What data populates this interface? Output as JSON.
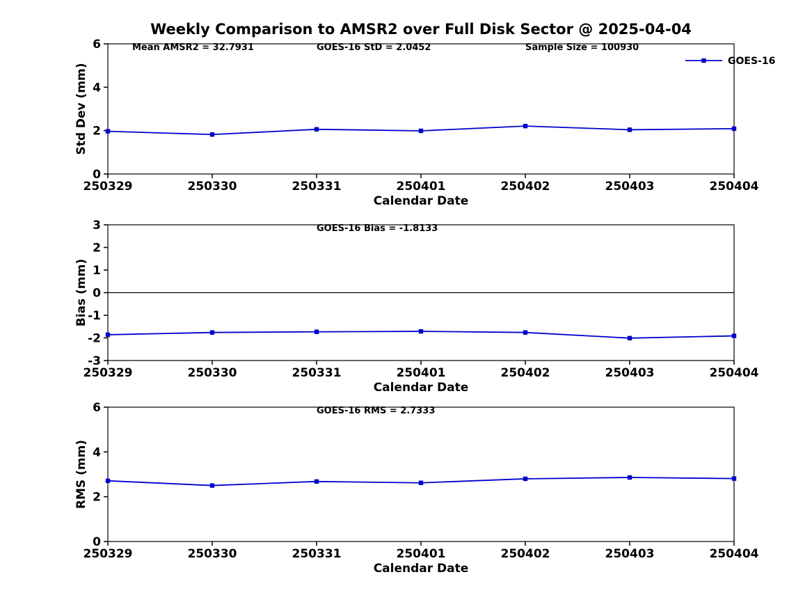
{
  "figure": {
    "background_color": "#ffffff",
    "accent_color": "#0000cc"
  },
  "chart_data": [
    {
      "type": "line",
      "title": "Weekly Comparison to AMSR2 over Full Disk Sector @ 2025-04-04",
      "xlabel": "Calendar Date",
      "ylabel": "Std Dev (mm)",
      "ylim": [
        0,
        6
      ],
      "yticks": [
        0,
        2,
        4,
        6
      ],
      "grid": false,
      "categories": [
        "250329",
        "250330",
        "250331",
        "250401",
        "250402",
        "250403",
        "250404"
      ],
      "series": [
        {
          "name": "GOES-16",
          "color": "#0000cc",
          "marker": "square",
          "values": [
            1.97,
            1.82,
            2.06,
            1.99,
            2.21,
            2.04,
            2.09
          ]
        }
      ],
      "annotations": [
        "Mean AMSR2 = 32.7931",
        "GOES-16 StD = 2.0452",
        "Sample Size = 100930"
      ],
      "stats": {
        "mean_amsr2": 32.7931,
        "goes16_std": 2.0452,
        "sample_size": 100930
      },
      "legend": {
        "position": "top-right-outside",
        "entries": [
          {
            "label": "GOES-16",
            "color": "#0000cc"
          }
        ]
      }
    },
    {
      "type": "line",
      "xlabel": "Calendar Date",
      "ylabel": "Bias (mm)",
      "ylim": [
        -3,
        3
      ],
      "yticks": [
        -3,
        -2,
        -1,
        0,
        1,
        2,
        3
      ],
      "grid": false,
      "zero_line": true,
      "categories": [
        "250329",
        "250330",
        "250331",
        "250401",
        "250402",
        "250403",
        "250404"
      ],
      "series": [
        {
          "name": "GOES-16",
          "color": "#0000cc",
          "marker": "square",
          "values": [
            -1.86,
            -1.76,
            -1.73,
            -1.71,
            -1.76,
            -2.01,
            -1.91
          ]
        }
      ],
      "annotations": [
        "GOES-16 Bias  = -1.8133"
      ],
      "stats": {
        "goes16_bias": -1.8133
      }
    },
    {
      "type": "line",
      "xlabel": "Calendar Date",
      "ylabel": "RMS (mm)",
      "ylim": [
        0,
        6
      ],
      "yticks": [
        0,
        2,
        4,
        6
      ],
      "grid": false,
      "categories": [
        "250329",
        "250330",
        "250331",
        "250401",
        "250402",
        "250403",
        "250404"
      ],
      "series": [
        {
          "name": "GOES-16",
          "color": "#0000cc",
          "marker": "square",
          "values": [
            2.71,
            2.5,
            2.68,
            2.62,
            2.8,
            2.86,
            2.81
          ]
        }
      ],
      "annotations": [
        "GOES-16 RMS = 2.7333"
      ],
      "stats": {
        "goes16_rms": 2.7333
      }
    }
  ]
}
